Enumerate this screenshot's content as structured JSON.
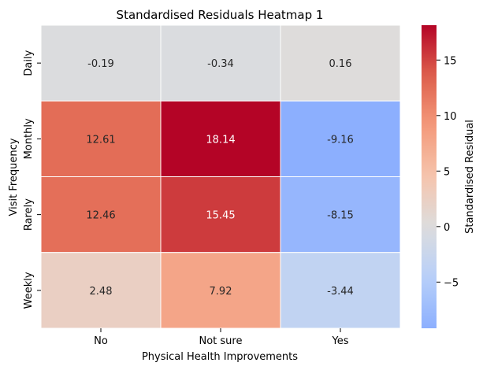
{
  "chart_data": {
    "type": "heatmap",
    "title": "Standardised Residuals Heatmap 1",
    "xlabel": "Physical Health Improvements",
    "ylabel": "Visit Frequency",
    "x_categories": [
      "No",
      "Not sure",
      "Yes"
    ],
    "y_categories": [
      "Daily",
      "Monthly",
      "Rarely",
      "Weekly"
    ],
    "values": [
      [
        -0.19,
        -0.34,
        0.16
      ],
      [
        12.61,
        18.14,
        -9.16
      ],
      [
        12.46,
        15.45,
        -8.15
      ],
      [
        2.48,
        7.92,
        -3.44
      ]
    ],
    "cell_labels": [
      [
        "-0.19",
        "-0.34",
        "0.16"
      ],
      [
        "12.61",
        "18.14",
        "-9.16"
      ],
      [
        "12.46",
        "15.45",
        "-8.15"
      ],
      [
        "2.48",
        "7.92",
        "-3.44"
      ]
    ],
    "colormap": "coolwarm",
    "center": 0,
    "vmin": -9.16,
    "vmax": 18.14,
    "colorbar": {
      "label": "Standardised Residual",
      "ticks": [
        -5,
        0,
        5,
        10,
        15
      ],
      "tick_labels": [
        "−5",
        "0",
        "5",
        "10",
        "15"
      ]
    },
    "grid": false,
    "cell_border_color": "#ffffff"
  }
}
